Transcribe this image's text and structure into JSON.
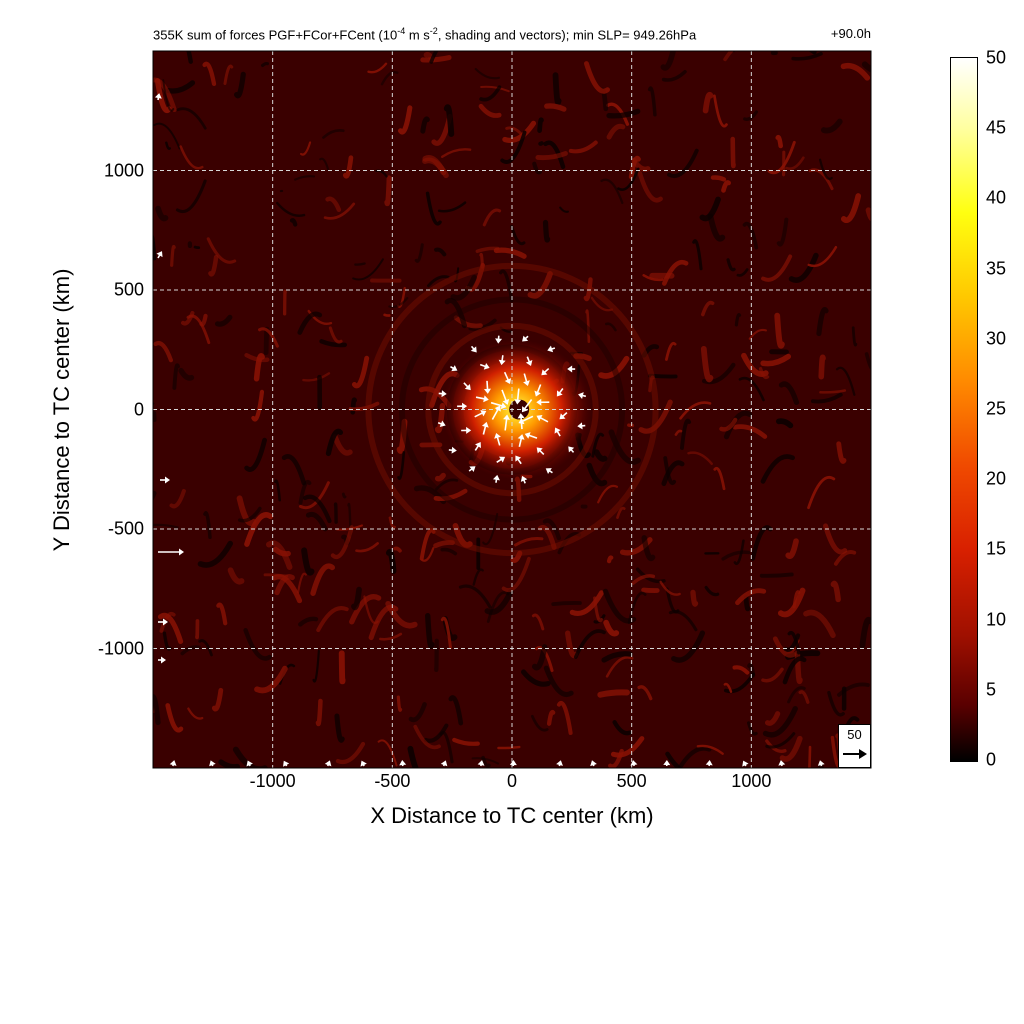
{
  "title": {
    "prefix": "355K sum of forces PGF+FCor+FCent (10",
    "exp1": "-4",
    "mid": " m s",
    "exp2": "-2",
    "suffix": ", shading and vectors); min SLP= 949.26hPa",
    "time": "+90.0h"
  },
  "chart_data": {
    "type": "heatmap",
    "xlabel": "X Distance to TC center (km)",
    "ylabel": "Y Distance to TC center (km)",
    "xlim": [
      -1500,
      1500
    ],
    "ylim": [
      -1500,
      1500
    ],
    "x_ticks": [
      "-1000",
      "-500",
      "0",
      "500",
      "1000"
    ],
    "x_tick_values": [
      -1000,
      -500,
      0,
      500,
      1000
    ],
    "y_ticks": [
      "1000",
      "500",
      "0",
      "-500",
      "-1000"
    ],
    "y_tick_values": [
      1000,
      500,
      0,
      -500,
      -1000
    ],
    "grid": true,
    "colorbar": {
      "min": 0,
      "max": 50,
      "ticks": [
        "50",
        "45",
        "40",
        "35",
        "30",
        "25",
        "20",
        "15",
        "10",
        "5",
        "0"
      ],
      "tick_values": [
        50,
        45,
        40,
        35,
        30,
        25,
        20,
        15,
        10,
        5,
        0
      ],
      "colors": [
        "#000000",
        "#a01000",
        "#f04a00",
        "#ffc800",
        "#ffff10",
        "#ffffff"
      ]
    },
    "reference_vector": {
      "label": "50",
      "value": 50
    },
    "core_max_magnitude": 45,
    "background_magnitude": 8
  }
}
